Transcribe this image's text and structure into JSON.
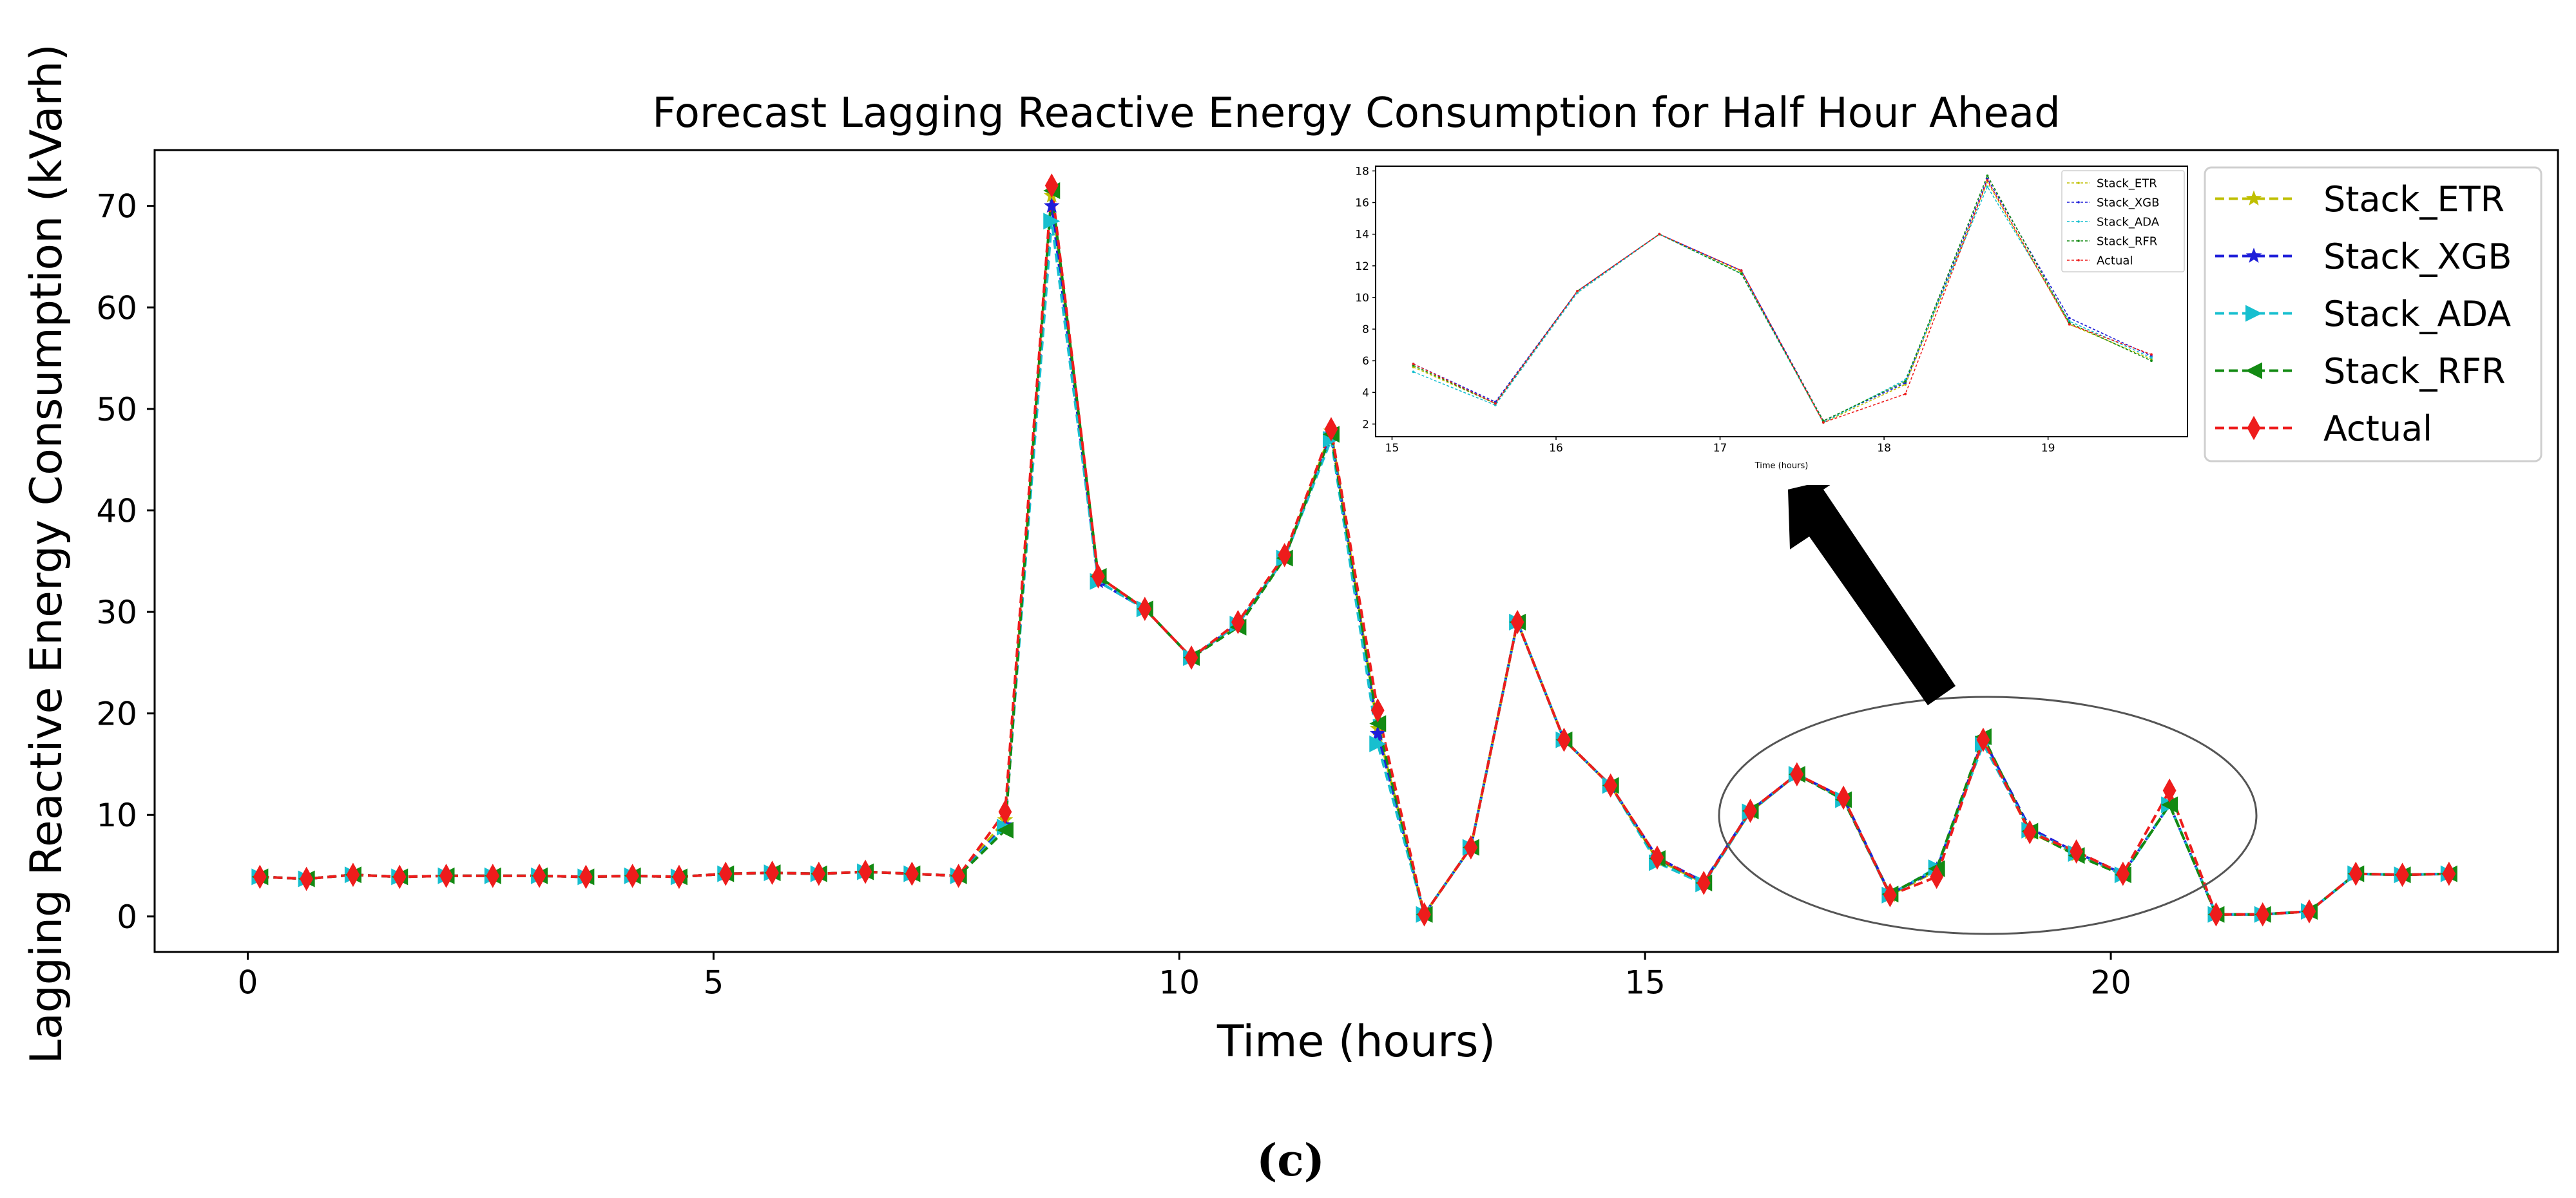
{
  "chart_data": [
    {
      "type": "line",
      "title": "Forecast Lagging Reactive Energy Consumption for Half Hour Ahead",
      "xlabel": "Time (hours)",
      "ylabel": "Lagging Reactive Energy Consumption (kVarh)",
      "xlim": [
        -1.0,
        24.8
      ],
      "ylim": [
        -3.5,
        75.5
      ],
      "xticks": [
        0,
        5,
        10,
        15,
        20
      ],
      "yticks": [
        0,
        10,
        20,
        30,
        40,
        50,
        60,
        70
      ],
      "legend_position": "top-right",
      "x": [
        0.13,
        0.63,
        1.13,
        1.63,
        2.13,
        2.63,
        3.13,
        3.63,
        4.13,
        4.63,
        5.13,
        5.63,
        6.13,
        6.63,
        7.13,
        7.63,
        8.13,
        8.63,
        9.13,
        9.63,
        10.13,
        10.63,
        11.13,
        11.63,
        12.13,
        12.63,
        13.13,
        13.63,
        14.13,
        14.63,
        15.13,
        15.63,
        16.13,
        16.63,
        17.13,
        17.63,
        18.13,
        18.63,
        19.13,
        19.63,
        20.13,
        20.63,
        21.13,
        21.63,
        22.13,
        22.63,
        23.13,
        23.63
      ],
      "series": [
        {
          "name": "Stack_ETR",
          "color": "#bfbf00",
          "marker": "star",
          "values": [
            3.9,
            3.7,
            4.1,
            3.9,
            4.0,
            4.0,
            4.0,
            3.9,
            4.0,
            3.9,
            4.2,
            4.3,
            4.2,
            4.4,
            4.2,
            4.0,
            9.5,
            71.0,
            33.5,
            30.3,
            25.5,
            28.8,
            35.3,
            47.8,
            18.5,
            0.2,
            6.8,
            29.0,
            17.4,
            12.9,
            5.6,
            3.3,
            10.3,
            14.0,
            11.6,
            2.1,
            4.5,
            17.3,
            8.3,
            6.1,
            4.1,
            11.0,
            0.2,
            0.2,
            0.5,
            4.2,
            4.1,
            4.2
          ]
        },
        {
          "name": "Stack_XGB",
          "color": "#1f1fd9",
          "marker": "star",
          "values": [
            3.9,
            3.7,
            4.1,
            3.9,
            4.0,
            4.0,
            4.0,
            3.9,
            4.0,
            3.9,
            4.2,
            4.3,
            4.2,
            4.4,
            4.2,
            4.0,
            9.0,
            70.0,
            33.0,
            30.3,
            25.5,
            28.8,
            35.3,
            47.5,
            18.0,
            0.2,
            6.8,
            29.0,
            17.4,
            12.9,
            5.8,
            3.4,
            10.4,
            14.0,
            11.7,
            2.2,
            4.6,
            17.5,
            8.7,
            6.3,
            4.2,
            11.0,
            0.2,
            0.2,
            0.5,
            4.2,
            4.1,
            4.2
          ]
        },
        {
          "name": "Stack_ADA",
          "color": "#17bfcf",
          "marker": "triangle-right",
          "values": [
            3.9,
            3.7,
            4.1,
            3.9,
            4.0,
            4.0,
            4.0,
            3.9,
            4.0,
            3.9,
            4.2,
            4.3,
            4.2,
            4.4,
            4.2,
            4.0,
            8.8,
            68.5,
            33.0,
            30.3,
            25.5,
            28.8,
            35.3,
            47.0,
            17.0,
            0.2,
            6.8,
            29.0,
            17.4,
            12.9,
            5.3,
            3.2,
            10.3,
            14.0,
            11.5,
            2.1,
            4.8,
            17.0,
            8.5,
            6.2,
            4.1,
            11.0,
            0.2,
            0.2,
            0.5,
            4.2,
            4.1,
            4.2
          ]
        },
        {
          "name": "Stack_RFR",
          "color": "#138a13",
          "marker": "triangle-left",
          "values": [
            3.9,
            3.7,
            4.1,
            3.9,
            4.0,
            4.0,
            4.0,
            3.9,
            4.0,
            3.9,
            4.2,
            4.3,
            4.2,
            4.4,
            4.2,
            4.0,
            8.5,
            71.5,
            33.5,
            30.3,
            25.5,
            28.5,
            35.3,
            47.5,
            19.0,
            0.2,
            6.8,
            29.0,
            17.4,
            12.9,
            5.7,
            3.3,
            10.4,
            14.0,
            11.5,
            2.2,
            4.7,
            17.7,
            8.4,
            6.0,
            4.1,
            11.0,
            0.2,
            0.2,
            0.5,
            4.2,
            4.1,
            4.2
          ]
        },
        {
          "name": "Actual",
          "color": "#ee1c1c",
          "marker": "diamond",
          "values": [
            3.9,
            3.7,
            4.1,
            3.9,
            4.0,
            4.0,
            4.0,
            3.9,
            4.0,
            3.9,
            4.2,
            4.3,
            4.2,
            4.4,
            4.2,
            4.0,
            10.3,
            72.0,
            33.5,
            30.3,
            25.5,
            29.0,
            35.6,
            48.0,
            20.3,
            0.2,
            6.8,
            29.0,
            17.4,
            12.9,
            5.8,
            3.3,
            10.4,
            14.0,
            11.7,
            2.1,
            3.9,
            17.4,
            8.3,
            6.4,
            4.2,
            12.4,
            0.2,
            0.2,
            0.5,
            4.2,
            4.1,
            4.2
          ]
        }
      ]
    },
    {
      "type": "line",
      "role": "inset zoom of 15–20 h",
      "xlabel": "Time (hours)",
      "xlim": [
        14.9,
        19.85
      ],
      "ylim": [
        1.2,
        18.3
      ],
      "xticks": [
        15,
        16,
        17,
        18,
        19
      ],
      "yticks": [
        2,
        4,
        6,
        8,
        10,
        12,
        14,
        16,
        18
      ],
      "legend_position": "top-right",
      "x": [
        15.13,
        15.63,
        16.13,
        16.63,
        17.13,
        17.63,
        18.13,
        18.63,
        19.13,
        19.63
      ],
      "series": [
        {
          "name": "Stack_ETR",
          "color": "#bfbf00",
          "values": [
            5.6,
            3.3,
            10.3,
            14.0,
            11.6,
            2.1,
            4.5,
            17.3,
            8.3,
            6.1
          ]
        },
        {
          "name": "Stack_XGB",
          "color": "#1f1fd9",
          "values": [
            5.8,
            3.4,
            10.4,
            14.0,
            11.7,
            2.2,
            4.6,
            17.5,
            8.7,
            6.3
          ]
        },
        {
          "name": "Stack_ADA",
          "color": "#17bfcf",
          "values": [
            5.3,
            3.2,
            10.3,
            14.0,
            11.5,
            2.1,
            4.8,
            17.0,
            8.5,
            6.2
          ]
        },
        {
          "name": "Stack_RFR",
          "color": "#138a13",
          "values": [
            5.7,
            3.3,
            10.4,
            14.0,
            11.5,
            2.2,
            4.7,
            17.7,
            8.4,
            6.0
          ]
        },
        {
          "name": "Actual",
          "color": "#ee1c1c",
          "values": [
            5.8,
            3.3,
            10.4,
            14.0,
            11.7,
            2.1,
            3.9,
            17.4,
            8.3,
            6.4
          ]
        }
      ]
    }
  ],
  "caption": "(c)"
}
